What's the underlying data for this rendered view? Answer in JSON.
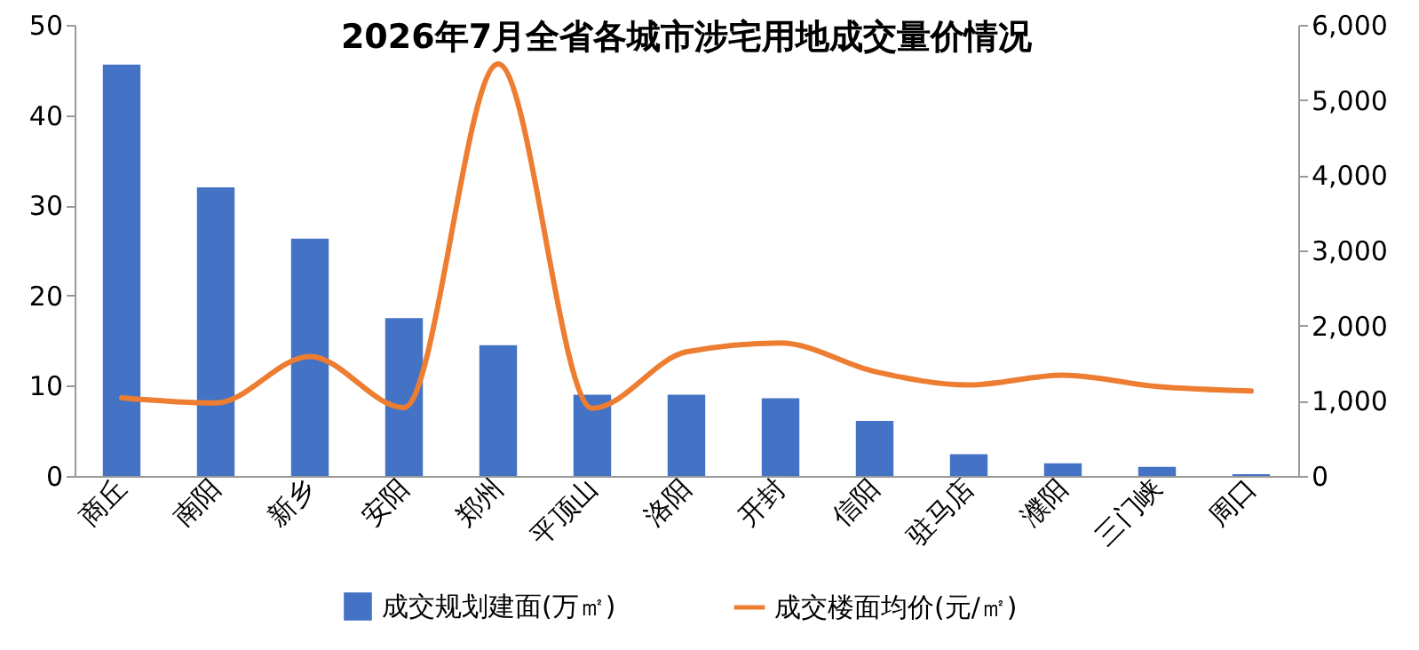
{
  "chart_data": {
    "type": "bar",
    "title": "2026年7月全省各城市涉宅用地成交量价情况",
    "categories": [
      "商丘",
      "南阳",
      "新乡",
      "安阳",
      "郑州",
      "平顶山",
      "洛阳",
      "开封",
      "信阳",
      "驻马店",
      "濮阳",
      "三门峡",
      "周口"
    ],
    "series": [
      {
        "name": "成交规划建面(万㎡)",
        "color": "#4472c4",
        "values": [
          45.6,
          32.0,
          26.3,
          17.5,
          14.5,
          9.0,
          9.0,
          8.6,
          6.1,
          2.4,
          1.4,
          1.0,
          0.2
        ]
      },
      {
        "name": "成交楼面均价(元/㎡)",
        "type": "line",
        "axis": "y2",
        "color": "#ed7d31",
        "values": [
          1040,
          970,
          1590,
          910,
          5480,
          900,
          1650,
          1770,
          1390,
          1210,
          1340,
          1190,
          1130
        ]
      }
    ],
    "ylim": [
      0,
      50
    ],
    "yticks": [
      0,
      10,
      20,
      30,
      40,
      50
    ],
    "y2lim": [
      0,
      6000
    ],
    "y2ticks": [
      0,
      {
        "value": 1000,
        "label": "1,000"
      },
      {
        "value": 2000,
        "label": "2,000"
      },
      {
        "value": 3000,
        "label": "3,000"
      },
      {
        "value": 4000,
        "label": "4,000"
      },
      {
        "value": 5000,
        "label": "5,000"
      },
      {
        "value": 6000,
        "label": "6,000"
      }
    ],
    "legend": "bottom"
  }
}
